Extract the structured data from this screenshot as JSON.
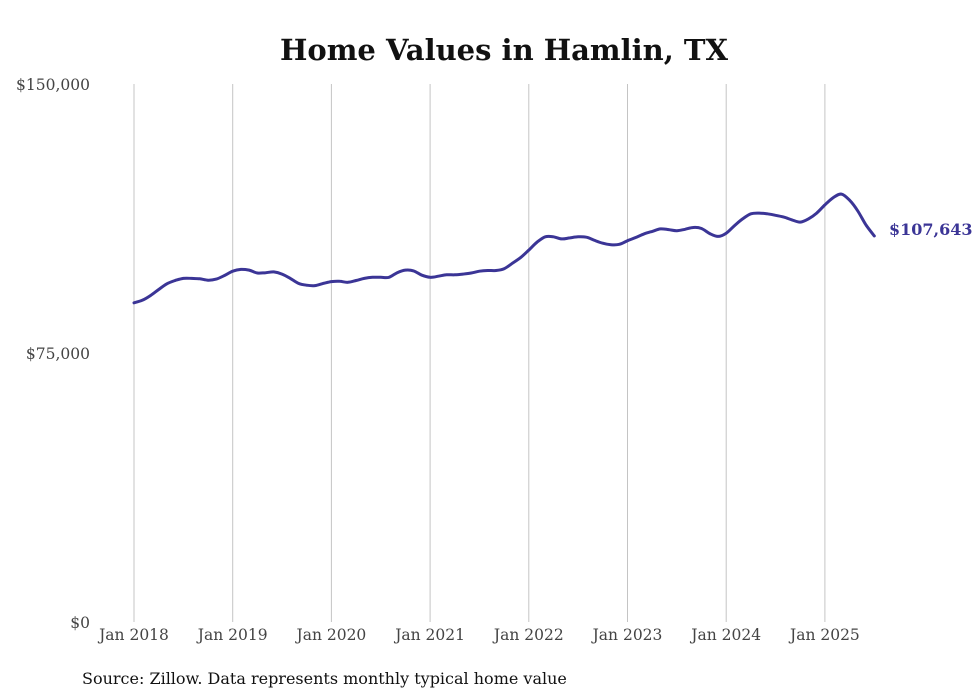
{
  "chart_data": {
    "type": "line",
    "title": "Home Values in Hamlin, TX",
    "xlabel": "",
    "ylabel": "",
    "ylim": [
      0,
      150000
    ],
    "xlim": [
      "2018-01",
      "2025-07"
    ],
    "y_ticks": [
      {
        "value": 0,
        "label": "$0"
      },
      {
        "value": 75000,
        "label": "$75,000"
      },
      {
        "value": 150000,
        "label": "$150,000"
      }
    ],
    "x_ticks": [
      {
        "date": "2018-01",
        "label": "Jan 2018"
      },
      {
        "date": "2019-01",
        "label": "Jan 2019"
      },
      {
        "date": "2020-01",
        "label": "Jan 2020"
      },
      {
        "date": "2021-01",
        "label": "Jan 2021"
      },
      {
        "date": "2022-01",
        "label": "Jan 2022"
      },
      {
        "date": "2023-01",
        "label": "Jan 2023"
      },
      {
        "date": "2024-01",
        "label": "Jan 2024"
      },
      {
        "date": "2025-01",
        "label": "Jan 2025"
      }
    ],
    "grid": "vertical",
    "series": [
      {
        "color": "#3b3596",
        "end_label": "$107,643",
        "points": [
          [
            "2018-01",
            89000
          ],
          [
            "2018-02",
            89700
          ],
          [
            "2018-03",
            91000
          ],
          [
            "2018-04",
            92700
          ],
          [
            "2018-05",
            94300
          ],
          [
            "2018-06",
            95200
          ],
          [
            "2018-07",
            95800
          ],
          [
            "2018-08",
            95800
          ],
          [
            "2018-09",
            95700
          ],
          [
            "2018-10",
            95300
          ],
          [
            "2018-11",
            95600
          ],
          [
            "2018-12",
            96600
          ],
          [
            "2019-01",
            97800
          ],
          [
            "2019-02",
            98300
          ],
          [
            "2019-03",
            98100
          ],
          [
            "2019-04",
            97300
          ],
          [
            "2019-05",
            97400
          ],
          [
            "2019-06",
            97600
          ],
          [
            "2019-07",
            97000
          ],
          [
            "2019-08",
            95800
          ],
          [
            "2019-09",
            94400
          ],
          [
            "2019-10",
            93900
          ],
          [
            "2019-11",
            93800
          ],
          [
            "2019-12",
            94400
          ],
          [
            "2020-01",
            94900
          ],
          [
            "2020-02",
            95000
          ],
          [
            "2020-03",
            94700
          ],
          [
            "2020-04",
            95200
          ],
          [
            "2020-05",
            95800
          ],
          [
            "2020-06",
            96100
          ],
          [
            "2020-07",
            96100
          ],
          [
            "2020-08",
            96100
          ],
          [
            "2020-09",
            97400
          ],
          [
            "2020-10",
            98100
          ],
          [
            "2020-11",
            97900
          ],
          [
            "2020-12",
            96700
          ],
          [
            "2021-01",
            96100
          ],
          [
            "2021-02",
            96400
          ],
          [
            "2021-03",
            96800
          ],
          [
            "2021-04",
            96800
          ],
          [
            "2021-05",
            97000
          ],
          [
            "2021-06",
            97300
          ],
          [
            "2021-07",
            97800
          ],
          [
            "2021-08",
            98000
          ],
          [
            "2021-09",
            98000
          ],
          [
            "2021-10",
            98500
          ],
          [
            "2021-11",
            100000
          ],
          [
            "2021-12",
            101600
          ],
          [
            "2022-01",
            103700
          ],
          [
            "2022-02",
            105900
          ],
          [
            "2022-03",
            107400
          ],
          [
            "2022-04",
            107400
          ],
          [
            "2022-05",
            106800
          ],
          [
            "2022-06",
            107100
          ],
          [
            "2022-07",
            107400
          ],
          [
            "2022-08",
            107300
          ],
          [
            "2022-09",
            106400
          ],
          [
            "2022-10",
            105600
          ],
          [
            "2022-11",
            105200
          ],
          [
            "2022-12",
            105300
          ],
          [
            "2023-01",
            106300
          ],
          [
            "2023-02",
            107200
          ],
          [
            "2023-03",
            108200
          ],
          [
            "2023-04",
            108900
          ],
          [
            "2023-05",
            109600
          ],
          [
            "2023-06",
            109400
          ],
          [
            "2023-07",
            109100
          ],
          [
            "2023-08",
            109500
          ],
          [
            "2023-09",
            110000
          ],
          [
            "2023-10",
            109700
          ],
          [
            "2023-11",
            108300
          ],
          [
            "2023-12",
            107500
          ],
          [
            "2024-01",
            108400
          ],
          [
            "2024-02",
            110500
          ],
          [
            "2024-03",
            112400
          ],
          [
            "2024-04",
            113800
          ],
          [
            "2024-05",
            114000
          ],
          [
            "2024-06",
            113800
          ],
          [
            "2024-07",
            113400
          ],
          [
            "2024-08",
            112900
          ],
          [
            "2024-09",
            112100
          ],
          [
            "2024-10",
            111500
          ],
          [
            "2024-11",
            112400
          ],
          [
            "2024-12",
            114000
          ],
          [
            "2025-01",
            116300
          ],
          [
            "2025-02",
            118300
          ],
          [
            "2025-03",
            119300
          ],
          [
            "2025-04",
            117600
          ],
          [
            "2025-05",
            114600
          ],
          [
            "2025-06",
            110700
          ],
          [
            "2025-07",
            107643
          ]
        ]
      }
    ]
  },
  "footer": {
    "source": "Source: Zillow. Data represents monthly typical home value"
  }
}
